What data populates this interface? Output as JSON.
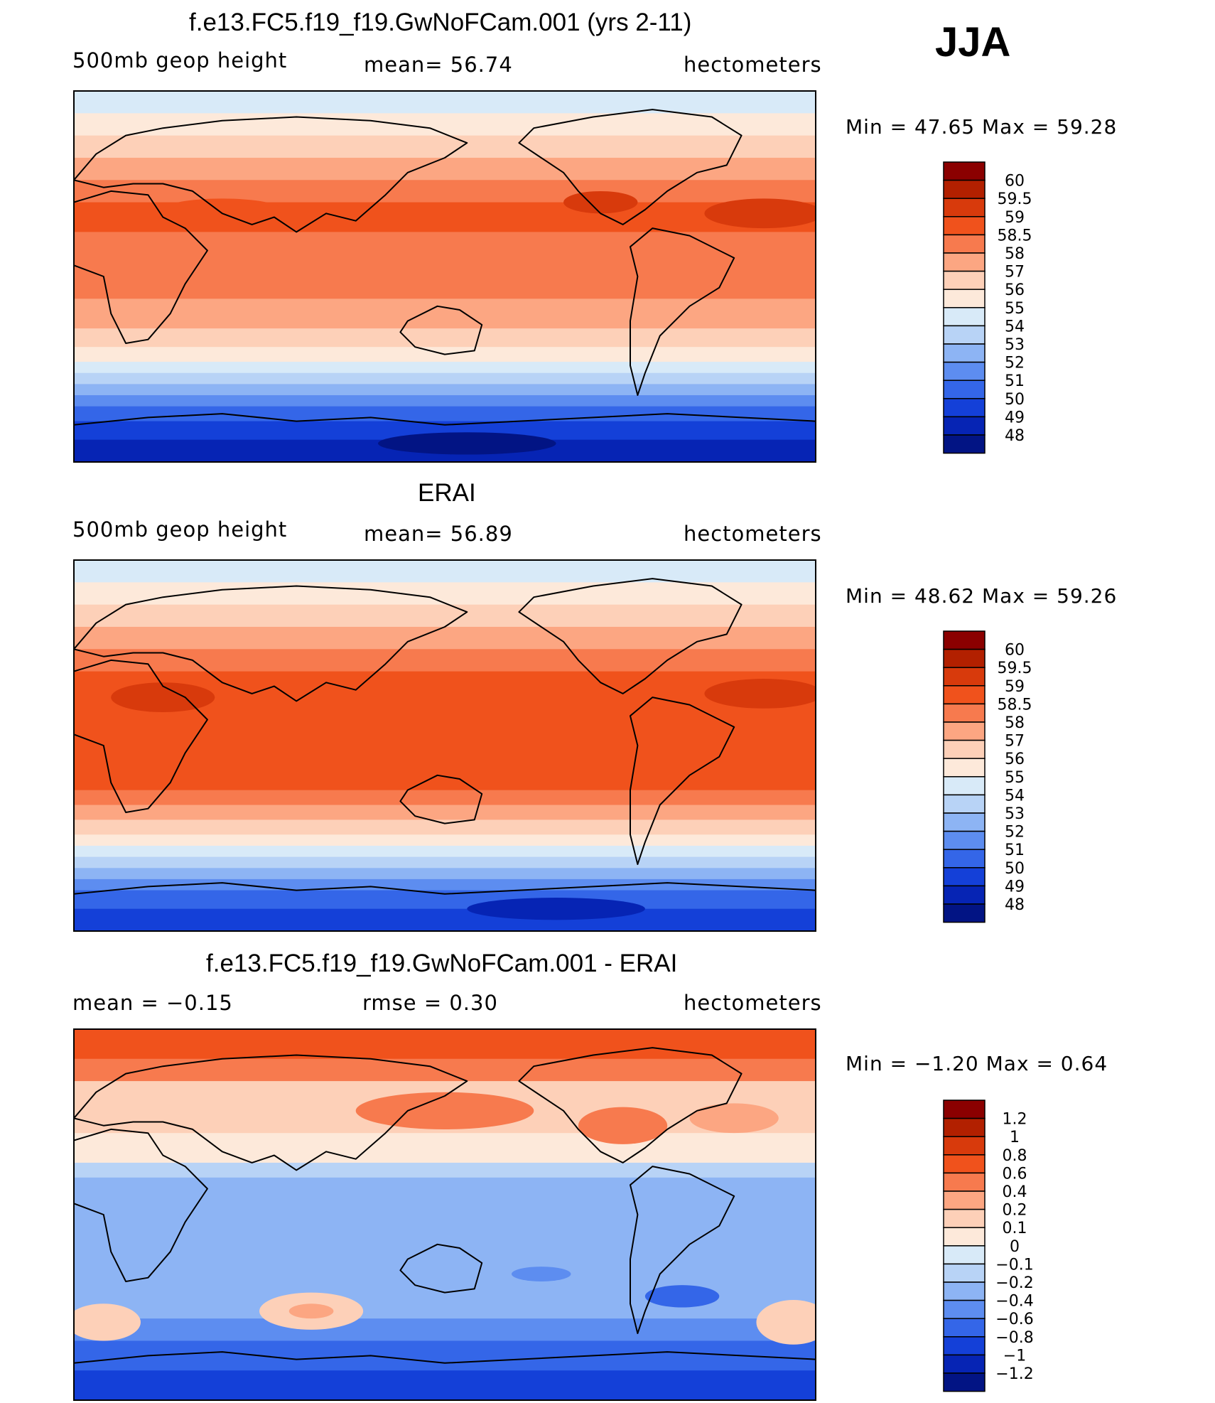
{
  "season": "JJA",
  "panels": [
    {
      "title": "f.e13.FC5.f19_f19.GwNoFCam.001 (yrs 2-11)",
      "left_label": "500mb geop height",
      "center_label": "mean=   56.74",
      "right_label": "hectometers",
      "minmax": "Min =   47.65  Max =   59.28"
    },
    {
      "title": "ERAI",
      "left_label": "500mb geop height",
      "center_label": "mean=   56.89",
      "right_label": "hectometers",
      "minmax": "Min =   48.62  Max =   59.26"
    },
    {
      "title": "f.e13.FC5.f19_f19.GwNoFCam.001 - ERAI",
      "left_label": "mean =   −0.15",
      "center_label": "rmse =    0.30",
      "right_label": "hectometers",
      "minmax": "Min =   −1.20  Max =    0.64"
    }
  ],
  "chart_data": [
    {
      "type": "heatmap",
      "title": "f.e13.FC5.f19_f19.GwNoFCam.001 (yrs 2-11)",
      "variable": "500mb geop height",
      "units": "hectometers",
      "mean": 56.74,
      "min": 47.65,
      "max": 59.28,
      "colorbar_levels": [
        "60",
        "59.5",
        "59",
        "58.5",
        "58",
        "57",
        "56",
        "55",
        "54",
        "53",
        "52",
        "51",
        "50",
        "49",
        "48"
      ],
      "colorbar_colors": [
        "#8b0000",
        "#b22000",
        "#d83a0c",
        "#f0521c",
        "#f77a4e",
        "#fca682",
        "#fdd0b8",
        "#fde9da",
        "#d8eaf8",
        "#b8d3f6",
        "#8db4f4",
        "#5d8df0",
        "#3466e8",
        "#1440d8",
        "#0624b4",
        "#021484"
      ]
    },
    {
      "type": "heatmap",
      "title": "ERAI",
      "variable": "500mb geop height",
      "units": "hectometers",
      "mean": 56.89,
      "min": 48.62,
      "max": 59.26,
      "colorbar_levels": [
        "60",
        "59.5",
        "59",
        "58.5",
        "58",
        "57",
        "56",
        "55",
        "54",
        "53",
        "52",
        "51",
        "50",
        "49",
        "48"
      ],
      "colorbar_colors": [
        "#8b0000",
        "#b22000",
        "#d83a0c",
        "#f0521c",
        "#f77a4e",
        "#fca682",
        "#fdd0b8",
        "#fde9da",
        "#d8eaf8",
        "#b8d3f6",
        "#8db4f4",
        "#5d8df0",
        "#3466e8",
        "#1440d8",
        "#0624b4",
        "#021484"
      ]
    },
    {
      "type": "heatmap",
      "title": "f.e13.FC5.f19_f19.GwNoFCam.001 - ERAI",
      "units": "hectometers",
      "mean": -0.15,
      "rmse": 0.3,
      "min": -1.2,
      "max": 0.64,
      "colorbar_levels": [
        "1.2",
        "1",
        "0.8",
        "0.6",
        "0.4",
        "0.2",
        "0.1",
        "0",
        "−0.1",
        "−0.2",
        "−0.4",
        "−0.6",
        "−0.8",
        "−1",
        "−1.2"
      ],
      "colorbar_colors": [
        "#8b0000",
        "#b22000",
        "#d83a0c",
        "#f0521c",
        "#f77a4e",
        "#fca682",
        "#fdd0b8",
        "#fde9da",
        "#d8eaf8",
        "#b8d3f6",
        "#8db4f4",
        "#5d8df0",
        "#3466e8",
        "#1440d8",
        "#0624b4",
        "#021484"
      ]
    }
  ]
}
